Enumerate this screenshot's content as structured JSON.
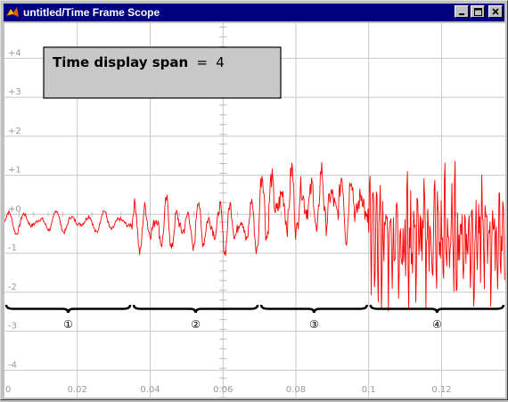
{
  "window": {
    "title": "untitled/Time Frame Scope",
    "controls": [
      "minimize-icon",
      "maximize-icon",
      "close-icon"
    ]
  },
  "annotation": {
    "label": "Time display span",
    "equals": "=",
    "value": "4"
  },
  "braces": [
    "①",
    "②",
    "③",
    "④"
  ],
  "colors": {
    "signal": "#ff0000",
    "grid": "#c8c8c8",
    "titlebar": "#000080",
    "annotation_fill": "#c8c8c8"
  },
  "chart_data": {
    "type": "line",
    "title": "",
    "xlabel": "",
    "ylabel": "",
    "xlim": [
      0,
      0.1375
    ],
    "ylim": [
      -4.7,
      4.9
    ],
    "grid": true,
    "x_ticks": [
      "0",
      "0.02",
      "0.04",
      "0.06",
      "0.08",
      "0.1",
      "0.12"
    ],
    "y_ticks": [
      "+4",
      "+3",
      "+2",
      "+1",
      "+0",
      "-1",
      "-2",
      "-3",
      "-4"
    ],
    "series": [
      {
        "color": "#ff0000",
        "segments": [
          {
            "x0": 0.0,
            "x1": 0.035,
            "mean": -0.2,
            "amp": 0.3,
            "cycles": 8,
            "noise": 0.05
          },
          {
            "x0": 0.035,
            "x1": 0.07,
            "mean": -0.3,
            "amp": 0.7,
            "cycles": 12,
            "noise": 0.15
          },
          {
            "x0": 0.07,
            "x1": 0.1,
            "mean": 0.3,
            "amp": 0.9,
            "cycles": 11,
            "noise": 0.3
          },
          {
            "x0": 0.1,
            "x1": 0.1375,
            "mean": -0.6,
            "amp": 1.3,
            "cycles": 40,
            "noise": 0.9
          }
        ]
      }
    ]
  }
}
